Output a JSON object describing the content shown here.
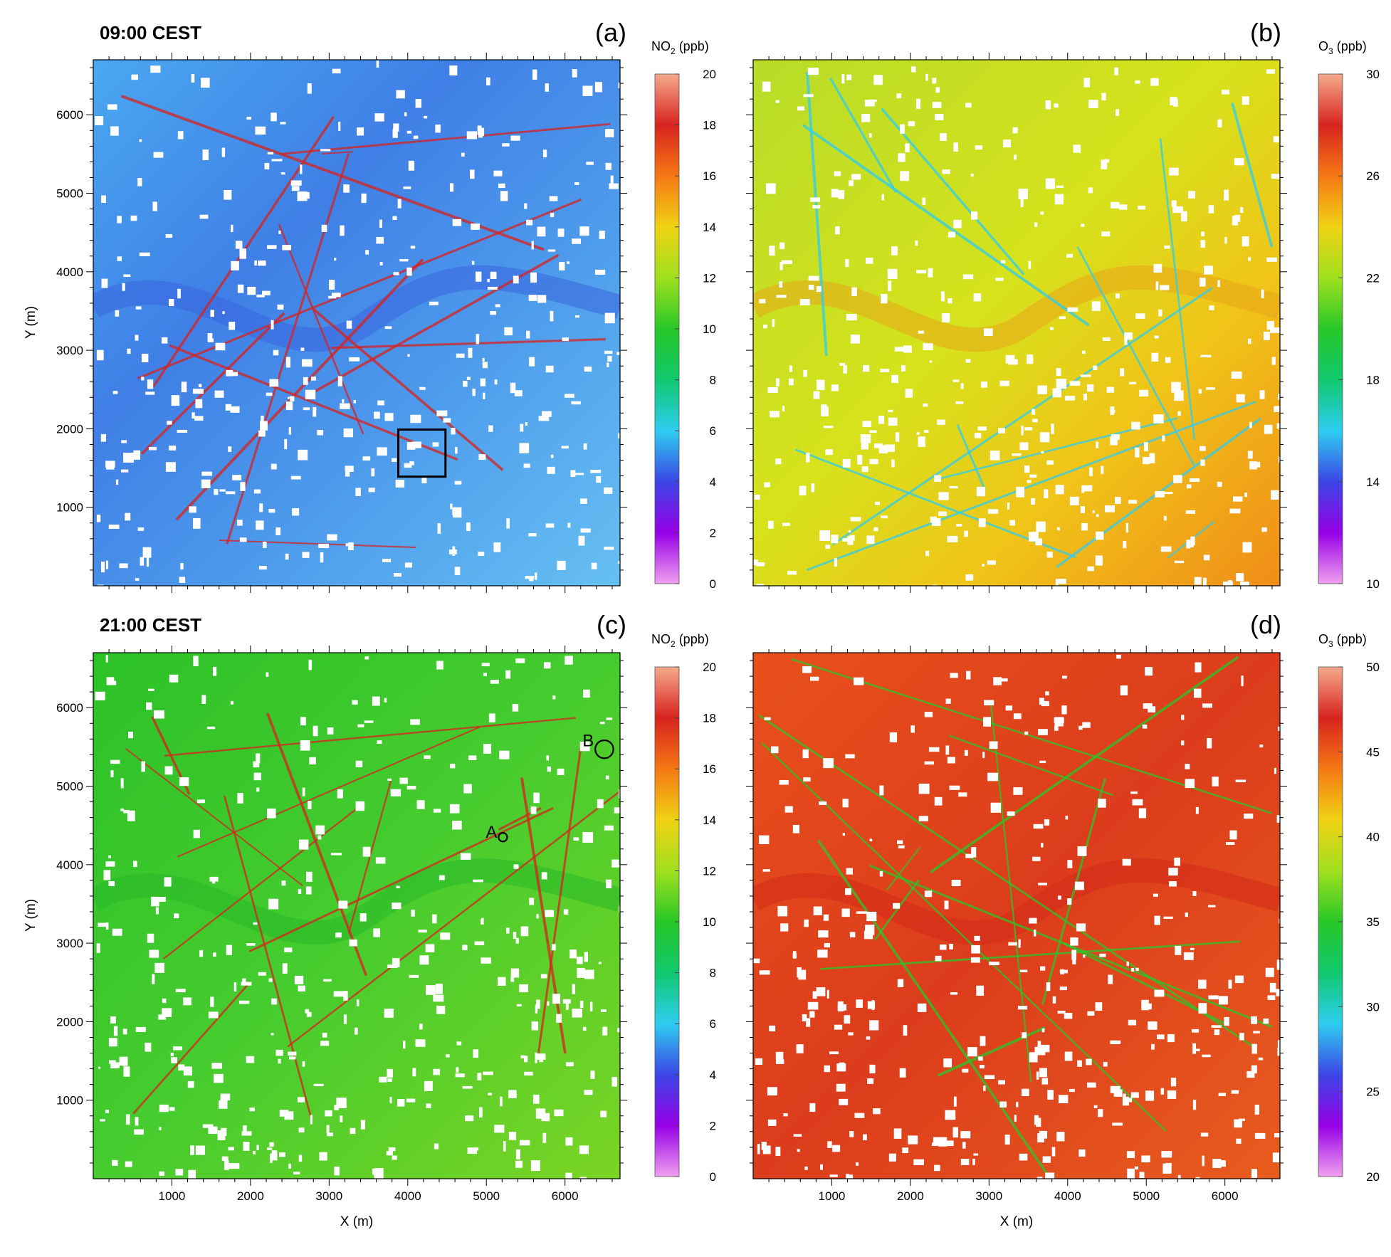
{
  "chart_data": [
    {
      "type": "heatmap",
      "panel_label": "(a)",
      "time_label": "09:00 CEST",
      "xlabel": "",
      "ylabel": "Y (m)",
      "xlim": [
        0,
        6700
      ],
      "ylim": [
        0,
        6700
      ],
      "x_ticks": [],
      "y_ticks": [
        1000,
        2000,
        3000,
        4000,
        5000,
        6000
      ],
      "colorbar": {
        "species": "NO",
        "subscript": "2",
        "unit": " (ppb)",
        "ticks": [
          0,
          2,
          4,
          6,
          8,
          10,
          12,
          14,
          16,
          18,
          20
        ],
        "range": [
          0,
          20
        ],
        "colors": [
          "#f0a0f0",
          "#9600e6",
          "#3c46e6",
          "#2ecdf0",
          "#10c86e",
          "#28c828",
          "#a0e01e",
          "#f0d214",
          "#f57814",
          "#d7231e",
          "#f5aa8c"
        ]
      },
      "base_color": "#4f95ec",
      "annotations": [
        {
          "shape": "square",
          "x": [
            3880,
            4480
          ],
          "y": [
            1390,
            1990
          ]
        }
      ]
    },
    {
      "type": "heatmap",
      "panel_label": "(b)",
      "time_label": "",
      "xlabel": "",
      "ylabel": "",
      "xlim": [
        0,
        6700
      ],
      "ylim": [
        0,
        6700
      ],
      "x_ticks": [],
      "y_ticks": [],
      "colorbar": {
        "species": "O",
        "subscript": "3",
        "unit": " (ppb)",
        "ticks": [
          10,
          14,
          18,
          22,
          26,
          30
        ],
        "range": [
          10,
          30
        ],
        "colors": [
          "#f0a0f0",
          "#9600e6",
          "#3c46e6",
          "#2ecdf0",
          "#10c86e",
          "#28c828",
          "#a0e01e",
          "#f0d214",
          "#f57814",
          "#d7231e",
          "#f5aa8c"
        ]
      },
      "base_color": "#c8e024",
      "annotations": []
    },
    {
      "type": "heatmap",
      "panel_label": "(c)",
      "time_label": "21:00  CEST",
      "xlabel": "X (m)",
      "ylabel": "Y (m)",
      "xlim": [
        0,
        6700
      ],
      "ylim": [
        0,
        6700
      ],
      "x_ticks": [
        1000,
        2000,
        3000,
        4000,
        5000,
        6000
      ],
      "y_ticks": [
        1000,
        2000,
        3000,
        4000,
        5000,
        6000
      ],
      "colorbar": {
        "species": "NO",
        "subscript": "2",
        "unit": " (ppb)",
        "ticks": [
          0,
          2,
          4,
          6,
          8,
          10,
          12,
          14,
          16,
          18,
          20
        ],
        "range": [
          0,
          20
        ],
        "colors": [
          "#f0a0f0",
          "#9600e6",
          "#3c46e6",
          "#2ecdf0",
          "#10c86e",
          "#28c828",
          "#a0e01e",
          "#f0d214",
          "#f57814",
          "#d7231e",
          "#f5aa8c"
        ]
      },
      "base_color": "#3cc832",
      "annotations": [
        {
          "shape": "circle",
          "label": "A",
          "x": 5210,
          "y": 4350,
          "r": 55
        },
        {
          "shape": "circle",
          "label": "B",
          "x": 6500,
          "y": 5470,
          "r": 115
        }
      ]
    },
    {
      "type": "heatmap",
      "panel_label": "(d)",
      "time_label": "",
      "xlabel": "X (m)",
      "ylabel": "",
      "xlim": [
        0,
        6700
      ],
      "ylim": [
        0,
        6700
      ],
      "x_ticks": [
        1000,
        2000,
        3000,
        4000,
        5000,
        6000
      ],
      "y_ticks": [],
      "colorbar": {
        "species": "O",
        "subscript": "3",
        "unit": " (ppb)",
        "ticks": [
          20,
          25,
          30,
          35,
          40,
          45,
          50
        ],
        "range": [
          20,
          50
        ],
        "colors": [
          "#f0a0f0",
          "#9600e6",
          "#3c46e6",
          "#2ecdf0",
          "#10c86e",
          "#28c828",
          "#a0e01e",
          "#f0d214",
          "#f57814",
          "#d7231e",
          "#f5aa8c"
        ]
      },
      "base_color": "#e8501e",
      "annotations": []
    }
  ]
}
